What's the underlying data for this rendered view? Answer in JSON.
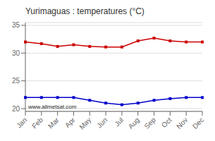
{
  "chart_data": {
    "type": "line",
    "title": "Yurimaguas : temperatures (°C)",
    "categories": [
      "Jan",
      "Feb",
      "Mar",
      "Apr",
      "May",
      "Jun",
      "Jul",
      "Aug",
      "Sep",
      "Oct",
      "Nov",
      "Dec"
    ],
    "series": [
      {
        "color": "#cc0000",
        "marker": "square",
        "values": [
          32.0,
          31.7,
          31.2,
          31.5,
          31.2,
          31.1,
          31.1,
          32.2,
          32.7,
          32.2,
          32.0,
          32.0
        ]
      },
      {
        "color": "#0000cc",
        "marker": "square",
        "values": [
          22.0,
          22.0,
          22.0,
          22.0,
          21.5,
          21.0,
          20.7,
          21.0,
          21.5,
          21.8,
          22.0,
          22.0
        ]
      }
    ],
    "ylim": [
      19.5,
      35.5
    ],
    "yticks": [
      20,
      25,
      30,
      35
    ],
    "grid": true,
    "annotations": [
      "www.allmetsat.com"
    ]
  }
}
